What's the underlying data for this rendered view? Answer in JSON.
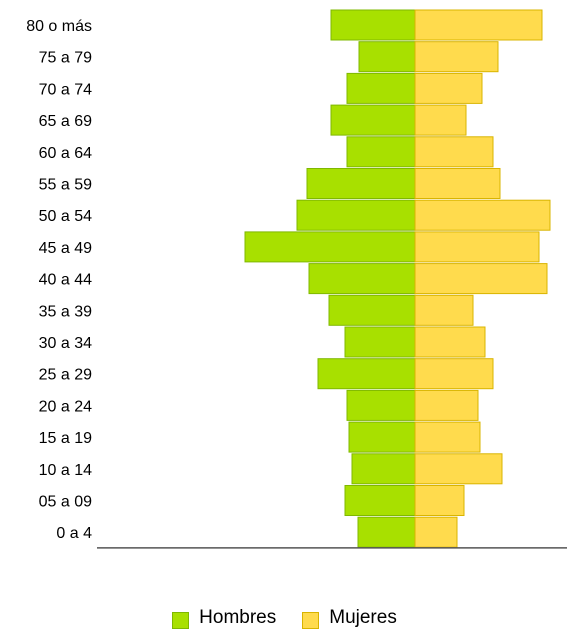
{
  "chart_data": {
    "type": "bar",
    "orientation": "horizontal",
    "layout": "population-pyramid",
    "categories": [
      "80 o más",
      "75 a 79",
      "70 a 74",
      "65 a 69",
      "60 a 64",
      "55 a 59",
      "50 a 54",
      "45 a 49",
      "40 a 44",
      "35 a 39",
      "30 a 34",
      "25 a 29",
      "20 a 24",
      "15 a 19",
      "10 a 14",
      "05 a 09",
      "0 a 4"
    ],
    "series": [
      {
        "name": "Hombres",
        "color": "#a8e000",
        "values": [
          84,
          56,
          68,
          84,
          68,
          108,
          118,
          170,
          106,
          86,
          70,
          97,
          68,
          66,
          63,
          70,
          57
        ]
      },
      {
        "name": "Mujeres",
        "color": "#ffdb4d",
        "values": [
          127,
          83,
          67,
          51,
          78,
          85,
          135,
          124,
          132,
          58,
          70,
          78,
          63,
          65,
          87,
          49,
          42
        ]
      }
    ],
    "xlabel": "",
    "ylabel": "",
    "grid": false,
    "legend": "bottom-center"
  }
}
